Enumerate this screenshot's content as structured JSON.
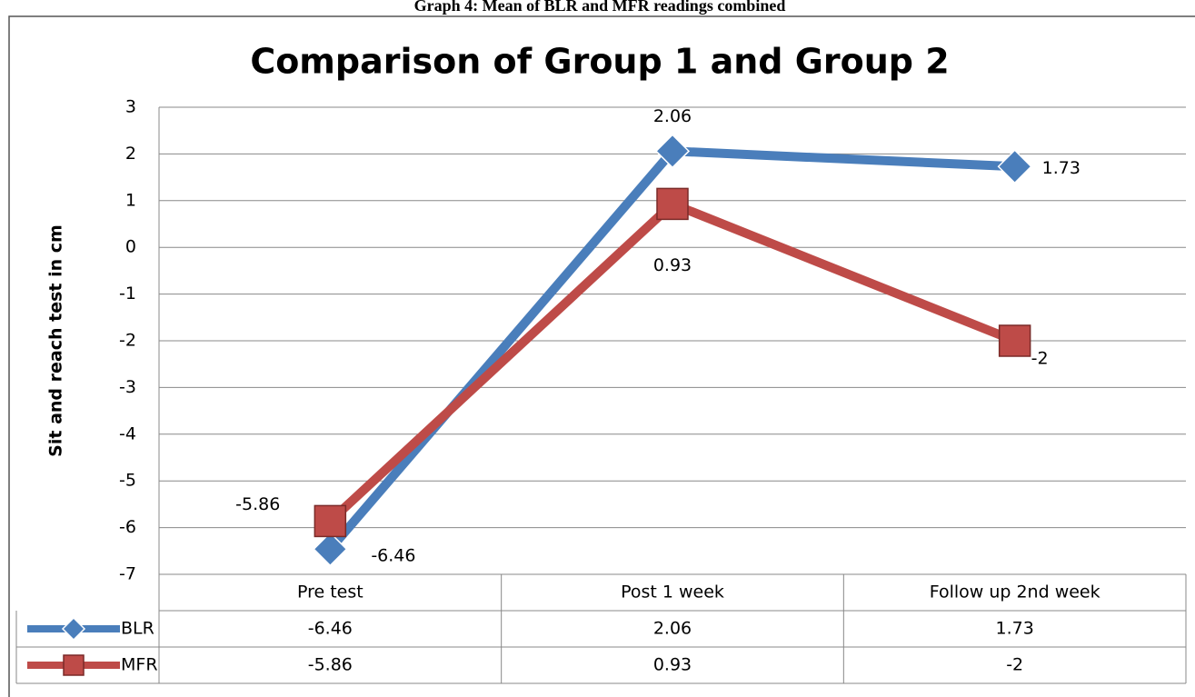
{
  "caption": "Graph 4: Mean of BLR and MFR readings combined",
  "chart_data": {
    "type": "line",
    "title": "Comparison of Group 1 and Group 2",
    "y_label": "Sit and reach test in cm",
    "categories": [
      "Pre test",
      "Post 1 week",
      "Follow up 2nd week"
    ],
    "series": [
      {
        "name": "BLR",
        "color": "#4a7ebb",
        "marker": "diamond",
        "values": [
          -6.46,
          2.06,
          1.73
        ]
      },
      {
        "name": "MFR",
        "color": "#be4b48",
        "marker": "square",
        "values": [
          -5.86,
          0.93,
          -2
        ]
      }
    ],
    "ylim": [
      -7,
      3
    ],
    "yticks": [
      -7,
      -6,
      -5,
      -4,
      -3,
      -2,
      -1,
      0,
      1,
      2,
      3
    ],
    "grid": true,
    "data_table": true
  }
}
